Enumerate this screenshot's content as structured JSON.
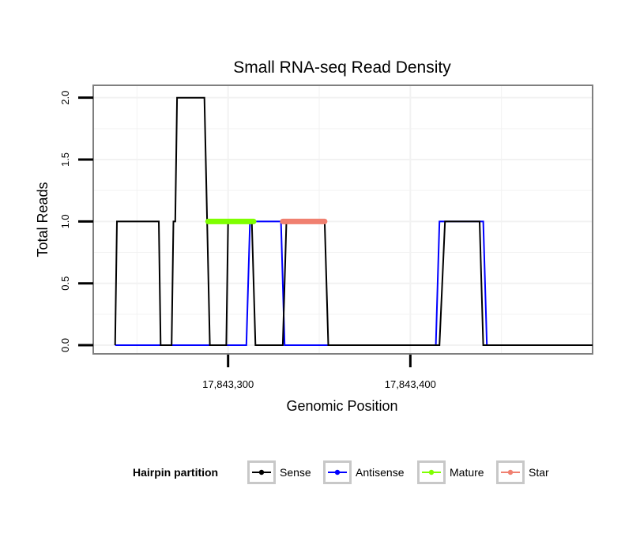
{
  "chart_data": {
    "type": "line",
    "title": "Small RNA-seq Read Density",
    "xlabel": "Genomic Position",
    "ylabel": "Total Reads",
    "xlim": [
      17843226,
      17843500
    ],
    "ylim": [
      -0.07,
      2.1
    ],
    "x_ticks": [
      {
        "value": 17843300,
        "label": "17,843,300"
      },
      {
        "value": 17843400,
        "label": "17,843,400"
      }
    ],
    "y_ticks": [
      {
        "value": 0,
        "label": "0.0"
      },
      {
        "value": 0.5,
        "label": "0.5"
      },
      {
        "value": 1,
        "label": "1.0"
      },
      {
        "value": 1.5,
        "label": "1.5"
      },
      {
        "value": 2,
        "label": "2.0"
      }
    ],
    "grid": true,
    "legend_position": "bottom",
    "series": [
      {
        "name": "Antisense",
        "color": "#0000ff",
        "x": [
          17843238,
          17843310,
          17843312,
          17843329,
          17843331,
          17843352,
          17843354,
          17843414,
          17843416,
          17843440,
          17843442,
          17843475
        ],
        "y": [
          0,
          0,
          1,
          1,
          0,
          0,
          0,
          0,
          1,
          1,
          0,
          0
        ]
      },
      {
        "name": "Sense",
        "color": "#000000",
        "x": [
          17843238,
          17843239,
          17843262,
          17843263,
          17843269,
          17843270,
          17843271,
          17843272,
          17843287,
          17843290,
          17843299,
          17843300,
          17843313,
          17843315,
          17843330,
          17843332,
          17843353,
          17843355,
          17843416,
          17843419,
          17843438,
          17843440,
          17843500
        ],
        "y": [
          0,
          1,
          1,
          0,
          0,
          1,
          1,
          2,
          2,
          0,
          0,
          1,
          1,
          0,
          0,
          1,
          1,
          0,
          0,
          1,
          1,
          0,
          0
        ]
      },
      {
        "name": "Mature",
        "color": "#7fff00",
        "x": [
          17843289,
          17843314
        ],
        "y": [
          1,
          1
        ]
      },
      {
        "name": "Star",
        "color": "#f08070",
        "x": [
          17843330,
          17843353
        ],
        "y": [
          1,
          1
        ]
      }
    ],
    "legend": {
      "title": "Hairpin partition",
      "entries": [
        {
          "label": "Sense",
          "color": "#000000"
        },
        {
          "label": "Antisense",
          "color": "#0000ff"
        },
        {
          "label": "Mature",
          "color": "#7fff00"
        },
        {
          "label": "Star",
          "color": "#f08070"
        }
      ]
    }
  }
}
